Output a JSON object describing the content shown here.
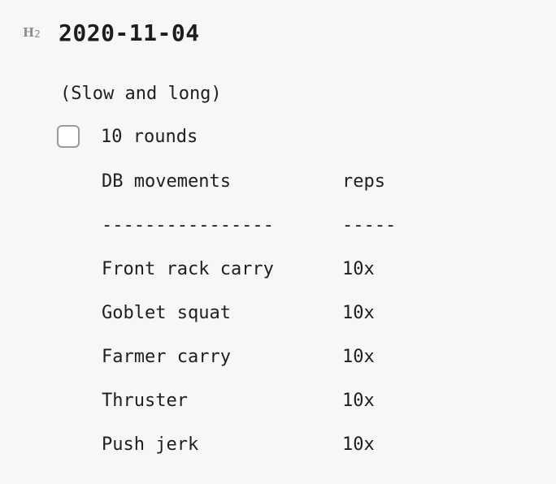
{
  "heading": {
    "marker": "H",
    "marker_level": "2",
    "text": "2020-11-04"
  },
  "subtitle": "(Slow and long)",
  "task": {
    "checked": false,
    "label": "10 rounds"
  },
  "table": {
    "headers": [
      "DB movements",
      "reps"
    ],
    "separators": [
      "----------------",
      "-----"
    ],
    "rows": [
      {
        "movement": "Front rack carry",
        "reps": "10x"
      },
      {
        "movement": "Goblet squat",
        "reps": "10x"
      },
      {
        "movement": "Farmer carry",
        "reps": "10x"
      },
      {
        "movement": "Thruster",
        "reps": "10x"
      },
      {
        "movement": "Push jerk",
        "reps": "10x"
      }
    ]
  }
}
